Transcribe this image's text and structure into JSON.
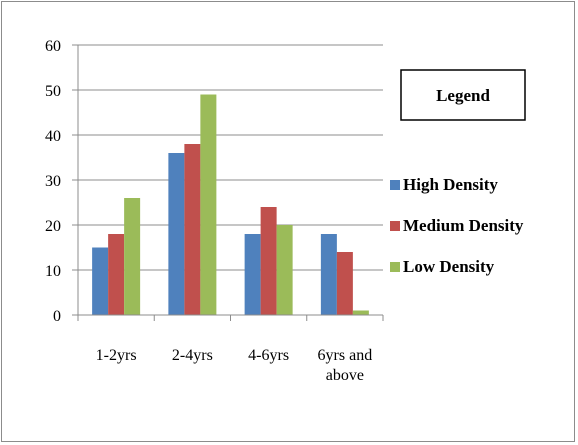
{
  "chart_data": {
    "type": "bar",
    "categories": [
      "1-2yrs",
      "2-4yrs",
      "4-6yrs",
      "6yrs and above"
    ],
    "series": [
      {
        "name": "High Density",
        "values": [
          15,
          36,
          18,
          18
        ],
        "color": "#4f81bd"
      },
      {
        "name": "Medium Density",
        "values": [
          18,
          38,
          24,
          14
        ],
        "color": "#c0504d"
      },
      {
        "name": "Low Density",
        "values": [
          26,
          49,
          20,
          1
        ],
        "color": "#9bbb59"
      }
    ],
    "ylim": [
      0,
      60
    ],
    "yticks": [
      0,
      10,
      20,
      30,
      40,
      50,
      60
    ],
    "grid": true,
    "legend": {
      "title": "Legend",
      "placement": "right"
    }
  }
}
